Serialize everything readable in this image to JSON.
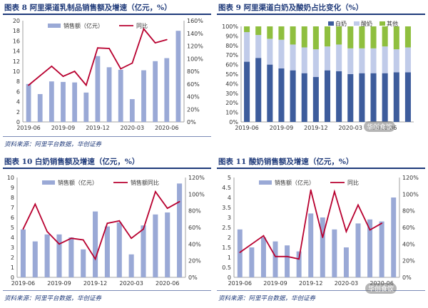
{
  "colors": {
    "bar": "#9aa9d6",
    "line": "#b8002f",
    "white": "#c0cbe9",
    "yogurt": "#a8bf5a",
    "other": "#8fbf3f",
    "milk": "#3d5c9c",
    "title": "#1f3a7a"
  },
  "watermark": "华创食饮",
  "chart_data": [
    {
      "type": "bar+line",
      "title": "图表 8   阿里渠道乳制品销售额及增速（亿元，%）",
      "source": "资料来源：阿里平台数据，华创证券",
      "legend": [
        "销售额（亿元）",
        "同比"
      ],
      "x_ticks": [
        "2019-06",
        "2019-09",
        "2019-12",
        "2020-03",
        "2020-06"
      ],
      "ylim": [
        0,
        20
      ],
      "y_ticks": [
        0,
        2,
        4,
        6,
        8,
        10,
        12,
        14,
        16,
        18,
        20
      ],
      "y2lim": [
        0,
        160
      ],
      "y2_ticks": [
        "0%",
        "20%",
        "40%",
        "60%",
        "80%",
        "100%",
        "120%",
        "140%",
        "160%"
      ],
      "bars": [
        7.5,
        5.5,
        8.0,
        7.9,
        7.8,
        5.8,
        13.0,
        10.8,
        10.3,
        4.5,
        10.2,
        12.0,
        12.6,
        18.0
      ],
      "line": [
        58,
        73,
        88,
        72,
        80,
        58,
        117,
        116,
        84,
        93,
        147,
        125,
        130,
        null
      ]
    },
    {
      "type": "stacked-bar-100",
      "title": "图表 9   阿里渠道白奶及酸奶占比变化（%）",
      "legend": [
        "白奶",
        "酸奶",
        "其他"
      ],
      "x_ticks": [
        "2019-06",
        "2019-09",
        "2019-12",
        "2020-03",
        "2020-06"
      ],
      "ylim": [
        0,
        100
      ],
      "y_ticks": [
        "0%",
        "10%",
        "20%",
        "30%",
        "40%",
        "50%",
        "60%",
        "70%",
        "80%",
        "90%",
        "100%"
      ],
      "milk": [
        63,
        67,
        60,
        56,
        54,
        51,
        47,
        54,
        53,
        50,
        51,
        51,
        51,
        52,
        52
      ],
      "yogurt": [
        31,
        24,
        27,
        30,
        27,
        27,
        29,
        25,
        28,
        27,
        26,
        26,
        28,
        24,
        26
      ],
      "other": [
        6,
        9,
        13,
        14,
        19,
        22,
        24,
        21,
        19,
        23,
        23,
        23,
        21,
        24,
        22
      ]
    },
    {
      "type": "bar+line",
      "title": "图表 10   白奶销售额及增速（亿元，%）",
      "source": "资料来源：阿里平台数据，华创证券",
      "legend": [
        "销售额（亿元）",
        "销售额同比"
      ],
      "x_ticks": [
        "2019-06",
        "2019-09",
        "2019-12",
        "2020-03",
        "2020-06"
      ],
      "ylim": [
        0,
        10
      ],
      "y_ticks": [
        0,
        1,
        2,
        3,
        4,
        5,
        6,
        7,
        8,
        9,
        10
      ],
      "y2lim": [
        0,
        120
      ],
      "y2_ticks": [
        "0%",
        "20%",
        "40%",
        "60%",
        "80%",
        "100%",
        "120%"
      ],
      "bars": [
        4.8,
        3.6,
        4.3,
        4.3,
        4.0,
        2.8,
        6.6,
        5.1,
        5.5,
        2.3,
        5.2,
        6.3,
        6.5,
        9.4
      ],
      "line": [
        58,
        88,
        55,
        40,
        47,
        45,
        22,
        65,
        68,
        47,
        58,
        103,
        83,
        91
      ]
    },
    {
      "type": "bar+line",
      "title": "图表 11   酸奶销售额及增速（亿元，%）",
      "source": "资料来源：阿里平台数据，华创证券",
      "legend": [
        "销售额（亿元）",
        "同比"
      ],
      "x_ticks": [
        "2019-06",
        "2019-09",
        "2019-12",
        "2020-03",
        "2020-06"
      ],
      "ylim": [
        0,
        5
      ],
      "y_ticks": [
        0,
        0.5,
        1,
        1.5,
        2,
        2.5,
        3,
        3.5,
        4,
        4.5,
        5
      ],
      "y2lim": [
        0,
        120
      ],
      "y2_ticks": [
        "0%",
        "20%",
        "40%",
        "60%",
        "80%",
        "100%",
        "120%"
      ],
      "bars": [
        2.4,
        1.5,
        2.0,
        1.8,
        1.6,
        1.3,
        3.2,
        3.0,
        2.4,
        1.5,
        2.7,
        2.9,
        2.8,
        4.0
      ],
      "line": [
        30,
        40,
        50,
        25,
        25,
        22,
        105,
        48,
        103,
        55,
        87,
        57,
        65,
        null
      ]
    }
  ]
}
